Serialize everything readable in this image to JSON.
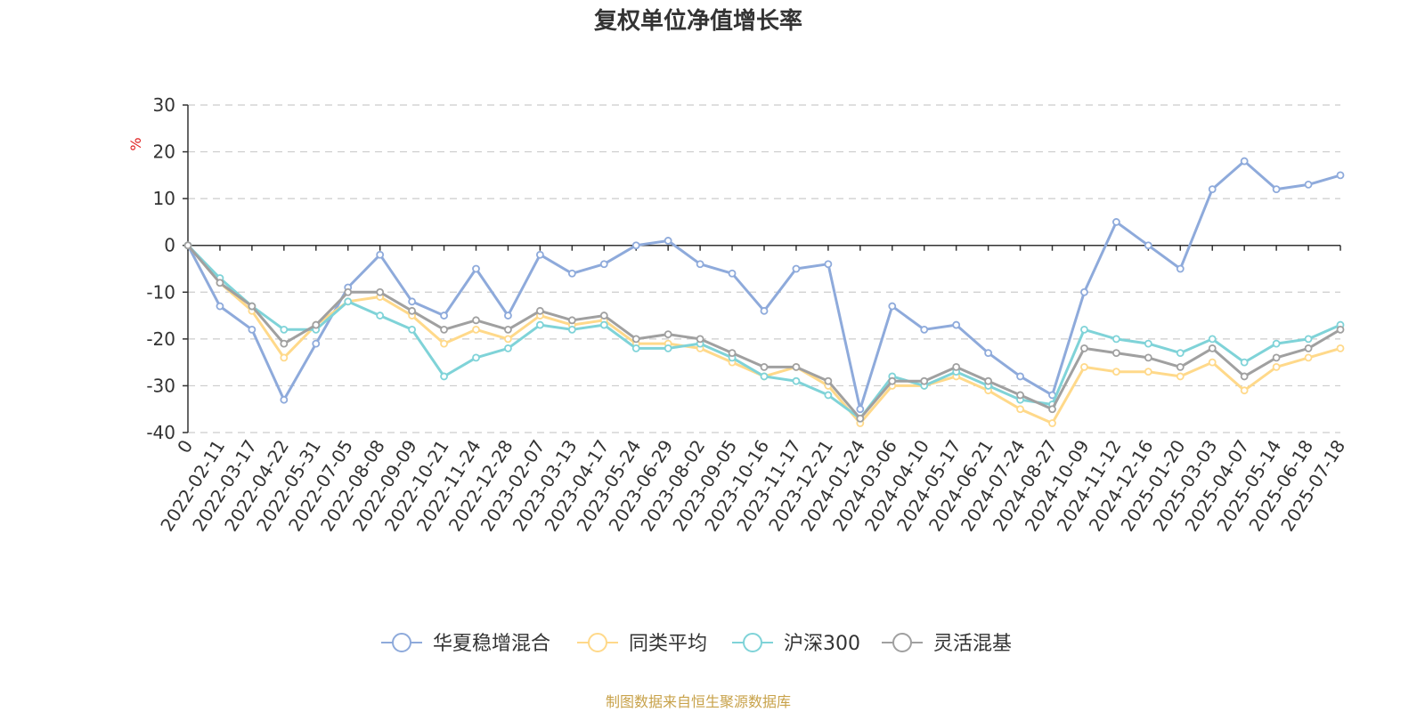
{
  "chart_data": {
    "type": "line",
    "title": "复权单位净值增长率",
    "ylabel": "%",
    "ylim": [
      -40,
      30
    ],
    "yticks": [
      -40,
      -30,
      -20,
      -10,
      0,
      10,
      20,
      30
    ],
    "grid": true,
    "legend_position": "bottom",
    "source": "制图数据来自恒生聚源数据库",
    "x": [
      "0",
      "2022-02-11",
      "2022-03-17",
      "2022-04-22",
      "2022-05-31",
      "2022-07-05",
      "2022-08-08",
      "2022-09-09",
      "2022-10-21",
      "2022-11-24",
      "2022-12-28",
      "2023-02-07",
      "2023-03-13",
      "2023-04-17",
      "2023-05-24",
      "2023-06-29",
      "2023-08-02",
      "2023-09-05",
      "2023-10-16",
      "2023-11-17",
      "2023-12-21",
      "2024-01-24",
      "2024-03-06",
      "2024-04-10",
      "2024-05-17",
      "2024-06-21",
      "2024-07-24",
      "2024-08-27",
      "2024-10-09",
      "2024-11-12",
      "2024-12-16",
      "2025-01-20",
      "2025-03-03",
      "2025-04-07",
      "2025-05-14",
      "2025-06-18",
      "2025-07-18"
    ],
    "series": [
      {
        "name": "华夏稳增混合",
        "color": "#8eaadb",
        "values": [
          0,
          -13,
          -18,
          -33,
          -21,
          -9,
          -2,
          -12,
          -15,
          -5,
          -15,
          -2,
          -6,
          -4,
          0,
          1,
          -4,
          -6,
          -14,
          -5,
          -4,
          -35,
          -13,
          -18,
          -17,
          -23,
          -28,
          -32,
          -10,
          5,
          0,
          -5,
          12,
          18,
          12,
          13,
          15
        ]
      },
      {
        "name": "同类平均",
        "color": "#ffd98a",
        "values": [
          0,
          -8,
          -14,
          -24,
          -17,
          -12,
          -11,
          -15,
          -21,
          -18,
          -20,
          -15,
          -17,
          -16,
          -21,
          -21,
          -22,
          -25,
          -28,
          -26,
          -30,
          -38,
          -30,
          -30,
          -28,
          -31,
          -35,
          -38,
          -26,
          -27,
          -27,
          -28,
          -25,
          -31,
          -26,
          -24,
          -22
        ]
      },
      {
        "name": "沪深300",
        "color": "#7fd3d8",
        "values": [
          0,
          -7,
          -13,
          -18,
          -18,
          -12,
          -15,
          -18,
          -28,
          -24,
          -22,
          -17,
          -18,
          -17,
          -22,
          -22,
          -21,
          -24,
          -28,
          -29,
          -32,
          -37,
          -28,
          -30,
          -27,
          -30,
          -33,
          -34,
          -18,
          -20,
          -21,
          -23,
          -20,
          -25,
          -21,
          -20,
          -17
        ]
      },
      {
        "name": "灵活混基",
        "color": "#a0a0a0",
        "values": [
          0,
          -8,
          -13,
          -21,
          -17,
          -10,
          -10,
          -14,
          -18,
          -16,
          -18,
          -14,
          -16,
          -15,
          -20,
          -19,
          -20,
          -23,
          -26,
          -26,
          -29,
          -37,
          -29,
          -29,
          -26,
          -29,
          -32,
          -35,
          -22,
          -23,
          -24,
          -26,
          -22,
          -28,
          -24,
          -22,
          -18
        ]
      }
    ]
  }
}
